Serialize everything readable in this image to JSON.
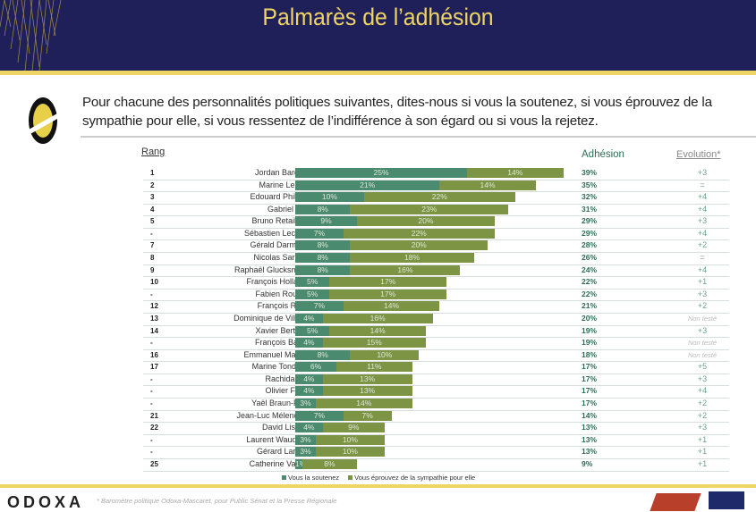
{
  "header": {
    "title": "Palmarès de l’adhésion"
  },
  "question": "Pour chacune des personnalités politiques suivantes, dites-nous si vous la soutenez, si vous éprouvez de la sympathie pour elle, si vous ressentez de l’indifférence à son égard ou si vous la rejetez.",
  "footer": {
    "logo": "ODOXA",
    "note": "* Baromètre politique Odoxa-Mascaret, pour Public Sénat et la Presse Régionale"
  },
  "chart_data": {
    "type": "bar",
    "stacked": true,
    "orientation": "horizontal",
    "title": "Palmarès de l’adhésion",
    "columns": {
      "rank": "Rang",
      "adhesion": "Adhésion",
      "evolution": "Evolution*"
    },
    "colors": {
      "soutien": "#4a8a6e",
      "sympathie": "#7d9445"
    },
    "legend": [
      "Vous la soutenez",
      "Vous éprouvez de la sympathie pour elle"
    ],
    "rows": [
      {
        "rank": "1",
        "name": "Jordan Bardella",
        "s": 25,
        "y": 14,
        "adh": "39%",
        "evo": "+3"
      },
      {
        "rank": "2",
        "name": "Marine Le Pen",
        "s": 21,
        "y": 14,
        "adh": "35%",
        "evo": "="
      },
      {
        "rank": "3",
        "name": "Edouard Philippe",
        "s": 10,
        "y": 22,
        "adh": "32%",
        "evo": "+4"
      },
      {
        "rank": "4",
        "name": "Gabriel Attal",
        "s": 8,
        "y": 23,
        "adh": "31%",
        "evo": "+4"
      },
      {
        "rank": "5",
        "name": "Bruno Retailleau",
        "s": 9,
        "y": 20,
        "adh": "29%",
        "evo": "+3"
      },
      {
        "rank": "-",
        "name": "Sébastien Lecornu",
        "s": 7,
        "y": 22,
        "adh": "29%",
        "evo": "+4"
      },
      {
        "rank": "7",
        "name": "Gérald Darmanin",
        "s": 8,
        "y": 20,
        "adh": "28%",
        "evo": "+2"
      },
      {
        "rank": "8",
        "name": "Nicolas Sarkozy",
        "s": 8,
        "y": 18,
        "adh": "26%",
        "evo": "="
      },
      {
        "rank": "9",
        "name": "Raphaël Glucksmann",
        "s": 8,
        "y": 16,
        "adh": "24%",
        "evo": "+4"
      },
      {
        "rank": "10",
        "name": "François Hollande",
        "s": 5,
        "y": 17,
        "adh": "22%",
        "evo": "+1"
      },
      {
        "rank": "-",
        "name": "Fabien Roussel",
        "s": 5,
        "y": 17,
        "adh": "22%",
        "evo": "+3"
      },
      {
        "rank": "12",
        "name": "François Ruffin",
        "s": 7,
        "y": 14,
        "adh": "21%",
        "evo": "+2"
      },
      {
        "rank": "13",
        "name": "Dominique de Villepin",
        "s": 4,
        "y": 16,
        "adh": "20%",
        "evo": "Non testé"
      },
      {
        "rank": "14",
        "name": "Xavier Bertrand",
        "s": 5,
        "y": 14,
        "adh": "19%",
        "evo": "+3"
      },
      {
        "rank": "-",
        "name": "François Baroin",
        "s": 4,
        "y": 15,
        "adh": "19%",
        "evo": "Non testé"
      },
      {
        "rank": "16",
        "name": "Emmanuel Macron",
        "s": 8,
        "y": 10,
        "adh": "18%",
        "evo": "Non testé"
      },
      {
        "rank": "17",
        "name": "Marine Tondelier",
        "s": 6,
        "y": 11,
        "adh": "17%",
        "evo": "+5"
      },
      {
        "rank": "-",
        "name": "Rachida Dati",
        "s": 4,
        "y": 13,
        "adh": "17%",
        "evo": "+3"
      },
      {
        "rank": "-",
        "name": "Olivier Faure",
        "s": 4,
        "y": 13,
        "adh": "17%",
        "evo": "+4"
      },
      {
        "rank": "-",
        "name": "Yaël Braun-Pivet",
        "s": 3,
        "y": 14,
        "adh": "17%",
        "evo": "+2"
      },
      {
        "rank": "21",
        "name": "Jean-Luc Mélenchon",
        "s": 7,
        "y": 7,
        "adh": "14%",
        "evo": "+2"
      },
      {
        "rank": "22",
        "name": "David Lisnard",
        "s": 4,
        "y": 9,
        "adh": "13%",
        "evo": "+3"
      },
      {
        "rank": "-",
        "name": "Laurent Wauquiez",
        "s": 3,
        "y": 10,
        "adh": "13%",
        "evo": "+1"
      },
      {
        "rank": "-",
        "name": "Gérard Larcher",
        "s": 3,
        "y": 10,
        "adh": "13%",
        "evo": "+1"
      },
      {
        "rank": "25",
        "name": "Catherine Vautrin",
        "s": 1,
        "y": 8,
        "adh": "9%",
        "evo": "+1"
      }
    ]
  }
}
